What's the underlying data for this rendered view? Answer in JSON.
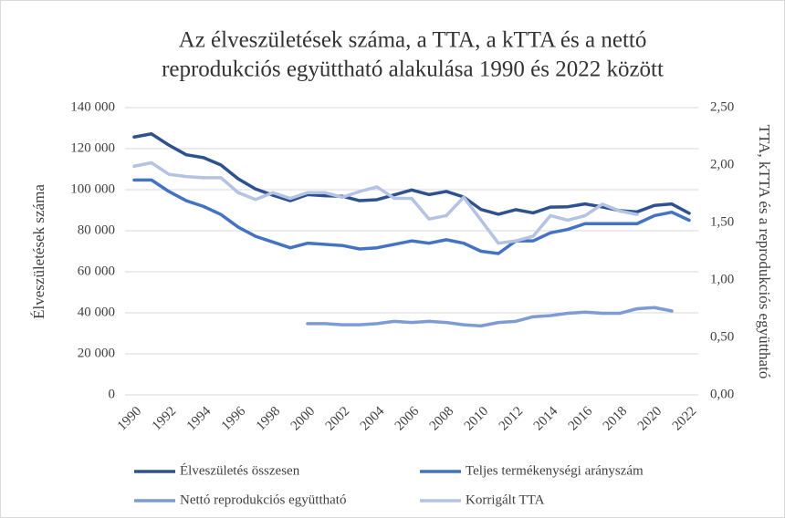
{
  "chart_data": {
    "type": "line",
    "title": [
      "Az élveszületések száma, a TTA, a kTTA és a nettó",
      "reprodukciós együttható alakulása 1990 és 2022 között"
    ],
    "y_label": "Élveszületések száma",
    "y2_label": "TTA, kTTA és a reprodukciós együttható",
    "x": [
      1990,
      1991,
      1992,
      1993,
      1994,
      1995,
      1996,
      1997,
      1998,
      1999,
      2000,
      2001,
      2002,
      2003,
      2004,
      2005,
      2006,
      2007,
      2008,
      2009,
      2010,
      2011,
      2012,
      2013,
      2014,
      2015,
      2016,
      2017,
      2018,
      2019,
      2020,
      2021,
      2022
    ],
    "xlim": [
      1990,
      2022
    ],
    "xticks": [
      1990,
      1992,
      1994,
      1996,
      1998,
      2000,
      2002,
      2004,
      2006,
      2008,
      2010,
      2012,
      2014,
      2016,
      2018,
      2020,
      2022
    ],
    "ylim": [
      0,
      140000
    ],
    "yticks": [
      0,
      {
        "value": 20000,
        "label": "20 000"
      },
      {
        "value": 40000,
        "label": "40 000"
      },
      {
        "value": 60000,
        "label": "60 000"
      },
      {
        "value": 80000,
        "label": "80 000"
      },
      {
        "value": 100000,
        "label": "100 000"
      },
      {
        "value": 120000,
        "label": "120 000"
      },
      {
        "value": 140000,
        "label": "140 000"
      }
    ],
    "y2lim": [
      0,
      2.5
    ],
    "y2ticks": [
      {
        "value": 0,
        "label": "0,00"
      },
      {
        "value": 0.5,
        "label": "0,50"
      },
      {
        "value": 1,
        "label": "1,00"
      },
      {
        "value": 1.5,
        "label": "1,50"
      },
      {
        "value": 2,
        "label": "2,00"
      },
      {
        "value": 2.5,
        "label": "2,50"
      }
    ],
    "grid": true,
    "legend": "bottom",
    "series": [
      {
        "name": "Élveszületés összesen",
        "color": "#2e5190",
        "values": [
          125679,
          127207,
          121724,
          117033,
          115598,
          112054,
          105272,
          100350,
          97301,
          94645,
          97597,
          97047,
          96804,
          94647,
          95137,
          97496,
          99871,
          97613,
          99149,
          96442,
          90335,
          88049,
          90269,
          88689,
          91510,
          91690,
          93063,
          91577,
          89807,
          89193,
          92338,
          93039,
          88491
        ]
      },
      {
        "name": "Teljes termékenységi arányszám",
        "color": "#4472c4",
        "axis": "y2",
        "values": [
          1.87,
          1.87,
          1.77,
          1.69,
          1.64,
          1.57,
          1.46,
          1.38,
          1.33,
          1.28,
          1.32,
          1.31,
          1.3,
          1.27,
          1.28,
          1.31,
          1.34,
          1.32,
          1.35,
          1.32,
          1.25,
          1.23,
          1.34,
          1.34,
          1.41,
          1.44,
          1.49,
          1.49,
          1.49,
          1.49,
          1.56,
          1.59,
          1.52
        ]
      },
      {
        "name": "Nettó reprodukciós együttható",
        "color": "#7f9bd6",
        "axis": "y2",
        "values": [
          null,
          null,
          null,
          null,
          null,
          null,
          null,
          null,
          null,
          null,
          0.62,
          0.62,
          0.61,
          0.61,
          0.62,
          0.64,
          0.63,
          0.64,
          0.63,
          0.61,
          0.6,
          0.63,
          0.64,
          0.68,
          0.69,
          0.71,
          0.72,
          0.71,
          0.71,
          0.75,
          0.76,
          0.73,
          null
        ]
      },
      {
        "name": "Korrigált TTA",
        "color": "#b4c3e3",
        "axis": "y2",
        "values": [
          1.99,
          2.02,
          1.92,
          1.9,
          1.89,
          1.89,
          1.76,
          1.7,
          1.76,
          1.71,
          1.76,
          1.76,
          1.72,
          1.77,
          1.81,
          1.71,
          1.71,
          1.53,
          1.56,
          1.72,
          1.52,
          1.32,
          1.34,
          1.38,
          1.56,
          1.52,
          1.56,
          1.66,
          1.6,
          1.57,
          null,
          null,
          null
        ]
      }
    ]
  }
}
